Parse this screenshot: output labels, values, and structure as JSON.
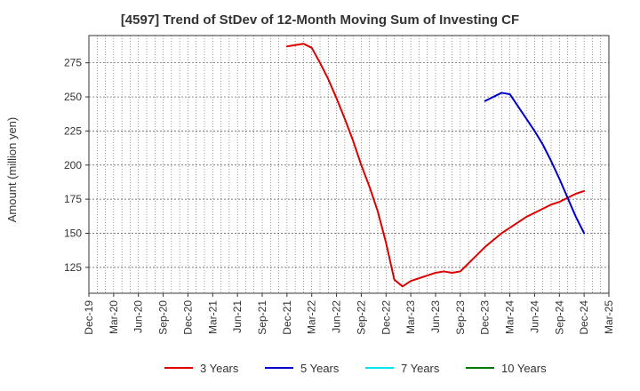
{
  "chart_data": {
    "type": "line",
    "title": "[4597]  Trend of StDev of 12-Month Moving Sum of Investing CF",
    "xlabel": "",
    "ylabel": "Amount (million yen)",
    "x_tick_labels": [
      "Dec-19",
      "Mar-20",
      "Jun-20",
      "Sep-20",
      "Dec-20",
      "Mar-21",
      "Jun-21",
      "Sep-21",
      "Dec-21",
      "Mar-22",
      "Jun-22",
      "Sep-22",
      "Dec-22",
      "Mar-23",
      "Jun-23",
      "Sep-23",
      "Dec-23",
      "Mar-24",
      "Jun-24",
      "Sep-24",
      "Dec-24",
      "Mar-25"
    ],
    "y_ticks": [
      125,
      150,
      175,
      200,
      225,
      250,
      275
    ],
    "ylim": [
      106,
      295
    ],
    "grid": true,
    "legend_position": "bottom",
    "series": [
      {
        "name": "3 Years",
        "color": "#dd0000",
        "x": [
          "2021-12",
          "2022-01",
          "2022-02",
          "2022-03",
          "2022-04",
          "2022-05",
          "2022-06",
          "2022-07",
          "2022-08",
          "2022-09",
          "2022-10",
          "2022-11",
          "2022-12",
          "2023-01",
          "2023-02",
          "2023-03",
          "2023-04",
          "2023-05",
          "2023-06",
          "2023-07",
          "2023-08",
          "2023-09",
          "2023-10",
          "2023-11",
          "2023-12",
          "2024-01",
          "2024-02",
          "2024-03",
          "2024-04",
          "2024-05",
          "2024-06",
          "2024-07",
          "2024-08",
          "2024-09",
          "2024-10",
          "2024-11",
          "2024-12"
        ],
        "values": [
          287,
          288,
          289,
          286,
          275,
          263,
          249,
          234,
          218,
          200,
          184,
          166,
          143,
          116,
          111,
          115,
          117,
          119,
          121,
          122,
          121,
          122,
          128,
          134,
          140,
          145,
          150,
          154,
          158,
          162,
          165,
          168,
          171,
          173,
          176,
          179,
          181
        ]
      },
      {
        "name": "5 Years",
        "color": "#0000cc",
        "x": [
          "2023-12",
          "2024-01",
          "2024-02",
          "2024-03",
          "2024-04",
          "2024-05",
          "2024-06",
          "2024-07",
          "2024-08",
          "2024-09",
          "2024-10",
          "2024-11",
          "2024-12"
        ],
        "values": [
          247,
          250,
          253,
          252,
          243,
          234,
          225,
          215,
          203,
          190,
          176,
          162,
          150
        ]
      },
      {
        "name": "7 Years",
        "color": "#00e5ee",
        "x": [],
        "values": []
      },
      {
        "name": "10 Years",
        "color": "#007700",
        "x": [],
        "values": []
      }
    ]
  }
}
